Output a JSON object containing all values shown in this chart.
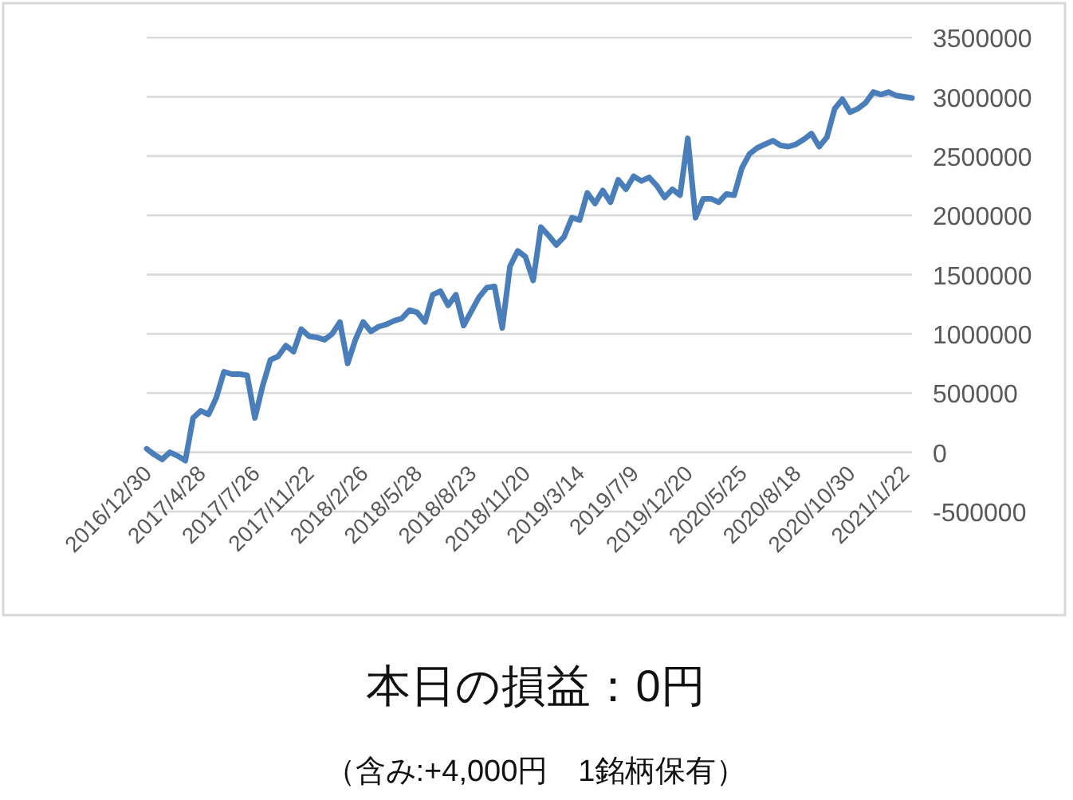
{
  "chart_data": {
    "type": "line",
    "categories": [
      "2016/12/30",
      null,
      null,
      null,
      null,
      null,
      null,
      "2017/4/28",
      null,
      null,
      null,
      null,
      null,
      null,
      "2017/7/26",
      null,
      null,
      null,
      null,
      null,
      null,
      "2017/11/22",
      null,
      null,
      null,
      null,
      null,
      null,
      "2018/2/26",
      null,
      null,
      null,
      null,
      null,
      null,
      "2018/5/28",
      null,
      null,
      null,
      null,
      null,
      null,
      "2018/8/23",
      null,
      null,
      null,
      null,
      null,
      null,
      "2018/11/20",
      null,
      null,
      null,
      null,
      null,
      null,
      "2019/3/14",
      null,
      null,
      null,
      null,
      null,
      null,
      "2019/7/9",
      null,
      null,
      null,
      null,
      null,
      null,
      "2019/12/20",
      null,
      null,
      null,
      null,
      null,
      null,
      "2020/5/25",
      null,
      null,
      null,
      null,
      null,
      null,
      "2020/8/18",
      null,
      null,
      null,
      null,
      null,
      null,
      "2020/10/30",
      null,
      null,
      null,
      null,
      null,
      null,
      "2021/1/22",
      null
    ],
    "series": [
      {
        "color": "#4a7ebb",
        "values": [
          30000,
          -20000,
          -60000,
          0,
          -30000,
          -70000,
          290000,
          350000,
          320000,
          460000,
          680000,
          660000,
          660000,
          650000,
          290000,
          560000,
          780000,
          810000,
          900000,
          850000,
          1040000,
          980000,
          970000,
          950000,
          1000000,
          1100000,
          750000,
          950000,
          1100000,
          1020000,
          1060000,
          1080000,
          1110000,
          1130000,
          1200000,
          1180000,
          1100000,
          1330000,
          1360000,
          1240000,
          1330000,
          1070000,
          1190000,
          1310000,
          1390000,
          1400000,
          1050000,
          1570000,
          1700000,
          1650000,
          1450000,
          1900000,
          1830000,
          1750000,
          1820000,
          1980000,
          1960000,
          2190000,
          2100000,
          2210000,
          2110000,
          2300000,
          2220000,
          2330000,
          2290000,
          2320000,
          2250000,
          2150000,
          2220000,
          2170000,
          2650000,
          1980000,
          2140000,
          2140000,
          2110000,
          2180000,
          2170000,
          2400000,
          2520000,
          2570000,
          2600000,
          2630000,
          2590000,
          2580000,
          2600000,
          2640000,
          2690000,
          2580000,
          2660000,
          2900000,
          2980000,
          2870000,
          2900000,
          2950000,
          3040000,
          3020000,
          3040000,
          3010000,
          3000000,
          2990000
        ]
      }
    ],
    "ylim": [
      -500000,
      3500000
    ],
    "yticks": [
      -500000,
      0,
      500000,
      1000000,
      1500000,
      2000000,
      2500000,
      3000000,
      3500000
    ],
    "grid": "y",
    "annotations": [
      "本日の損益：0円",
      "（含み:+4,000円　1銘柄保有）"
    ]
  }
}
